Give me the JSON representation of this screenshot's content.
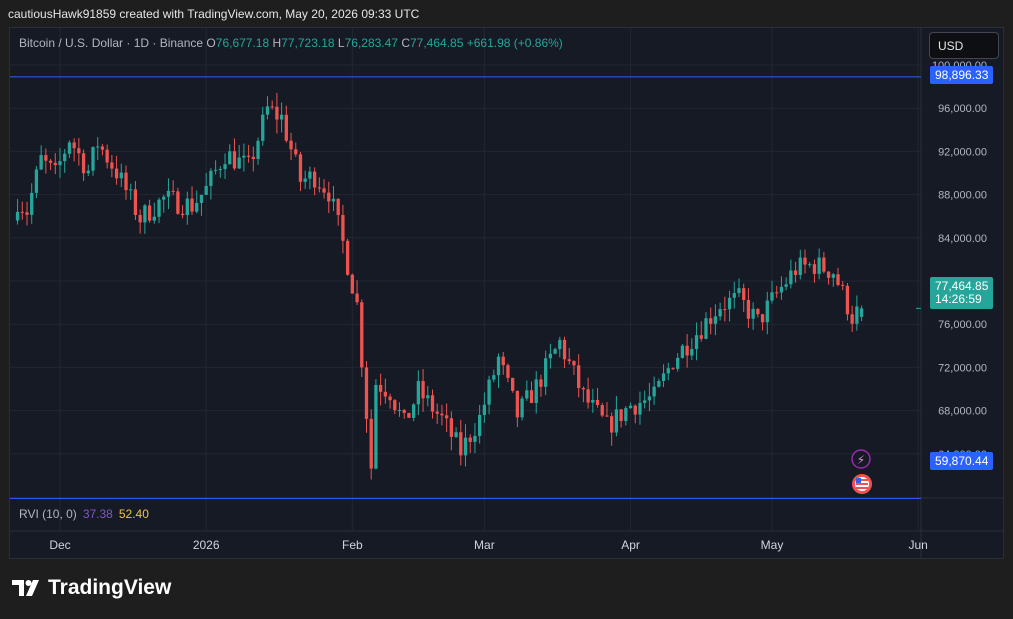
{
  "header": {
    "credit": "cautiousHawk91859 created with TradingView.com, May 20, 2026 09:33 UTC"
  },
  "legend": {
    "symbol": "Bitcoin / U.S. Dollar · 1D · Binance",
    "open_label": "O",
    "open": "76,677.18",
    "high_label": "H",
    "high": "77,723.18",
    "low_label": "L",
    "low": "76,283.47",
    "close_label": "C",
    "close": "77,464.85",
    "change": "+661.98 (+0.86%)"
  },
  "currency": "USD",
  "tags": {
    "high_line": "98,896.33",
    "low_line": "59,870.44",
    "last_price": "77,464.85",
    "countdown": "14:26:59"
  },
  "indicator": {
    "name": "RVI (10, 0)",
    "value_1": "37.38",
    "value_2": "52.40"
  },
  "footer": {
    "brand": "TradingView"
  },
  "colors": {
    "up": "#26a69a",
    "down": "#ef5350",
    "hline": "#2962ff",
    "background": "#161a25",
    "grid": "#232632"
  },
  "chart_data": {
    "type": "candlestick",
    "title": "Bitcoin / U.S. Dollar · 1D · Binance",
    "ylim": [
      58000,
      100800
    ],
    "y_ticks": [
      64000,
      68000,
      72000,
      76000,
      80000,
      84000,
      88000,
      92000,
      96000,
      100000
    ],
    "y_tick_labels": [
      "64,000.00",
      "68,000.00",
      "72,000.00",
      "76,000.00",
      "80,000.00",
      "84,000.00",
      "88,000.00",
      "92,000.00",
      "96,000.00",
      "100,000.00"
    ],
    "x_tick_labels": [
      "Dec",
      "2026",
      "Feb",
      "Mar",
      "Apr",
      "May",
      "Jun"
    ],
    "x_tick_dates": [
      "2025-12-01",
      "2026-01-01",
      "2026-02-01",
      "2026-03-01",
      "2026-04-01",
      "2026-05-01",
      "2026-06-01"
    ],
    "horizontal_lines": [
      98896.33,
      59870.44
    ],
    "last_price": 77464.85,
    "grid": true,
    "anchors": [
      [
        "2025-11-22",
        87500,
        1
      ],
      [
        "2025-11-24",
        86500,
        1
      ],
      [
        "2025-11-27",
        91200,
        0
      ],
      [
        "2025-11-30",
        89800,
        1
      ],
      [
        "2025-12-03",
        93200,
        0
      ],
      [
        "2025-12-07",
        90200,
        1
      ],
      [
        "2025-12-09",
        92800,
        0
      ],
      [
        "2025-12-13",
        90100,
        1
      ],
      [
        "2025-12-18",
        85800,
        1
      ],
      [
        "2025-12-23",
        87600,
        0
      ],
      [
        "2025-12-29",
        87000,
        1
      ],
      [
        "2026-01-01",
        88500,
        0
      ],
      [
        "2026-01-05",
        91800,
        0
      ],
      [
        "2026-01-10",
        90500,
        1
      ],
      [
        "2026-01-14",
        95900,
        0
      ],
      [
        "2026-01-17",
        95100,
        1
      ],
      [
        "2026-01-21",
        89300,
        1
      ],
      [
        "2026-01-24",
        89700,
        0
      ],
      [
        "2026-01-27",
        88300,
        1
      ],
      [
        "2026-01-30",
        83500,
        1
      ],
      [
        "2026-02-02",
        77800,
        1
      ],
      [
        "2026-02-05",
        62800,
        1
      ],
      [
        "2026-02-06",
        70600,
        0
      ],
      [
        "2026-02-09",
        69800,
        1
      ],
      [
        "2026-02-12",
        66700,
        1
      ],
      [
        "2026-02-15",
        69800,
        0
      ],
      [
        "2026-02-20",
        67200,
        1
      ],
      [
        "2026-02-24",
        64200,
        1
      ],
      [
        "2026-02-28",
        67300,
        0
      ],
      [
        "2026-03-04",
        72800,
        0
      ],
      [
        "2026-03-08",
        67600,
        1
      ],
      [
        "2026-03-12",
        70200,
        0
      ],
      [
        "2026-03-17",
        74300,
        0
      ],
      [
        "2026-03-22",
        69300,
        1
      ],
      [
        "2026-03-27",
        66500,
        1
      ],
      [
        "2026-04-01",
        68500,
        0
      ],
      [
        "2026-04-06",
        69200,
        0
      ],
      [
        "2026-04-10",
        72700,
        0
      ],
      [
        "2026-04-15",
        75200,
        0
      ],
      [
        "2026-04-20",
        77800,
        0
      ],
      [
        "2026-04-24",
        78300,
        0
      ],
      [
        "2026-04-28",
        76200,
        1
      ],
      [
        "2026-05-02",
        78800,
        0
      ],
      [
        "2026-05-06",
        81100,
        0
      ],
      [
        "2026-05-10",
        81500,
        0
      ],
      [
        "2026-05-14",
        80900,
        1
      ],
      [
        "2026-05-18",
        76700,
        1
      ],
      [
        "2026-05-20",
        77465,
        0
      ]
    ]
  }
}
